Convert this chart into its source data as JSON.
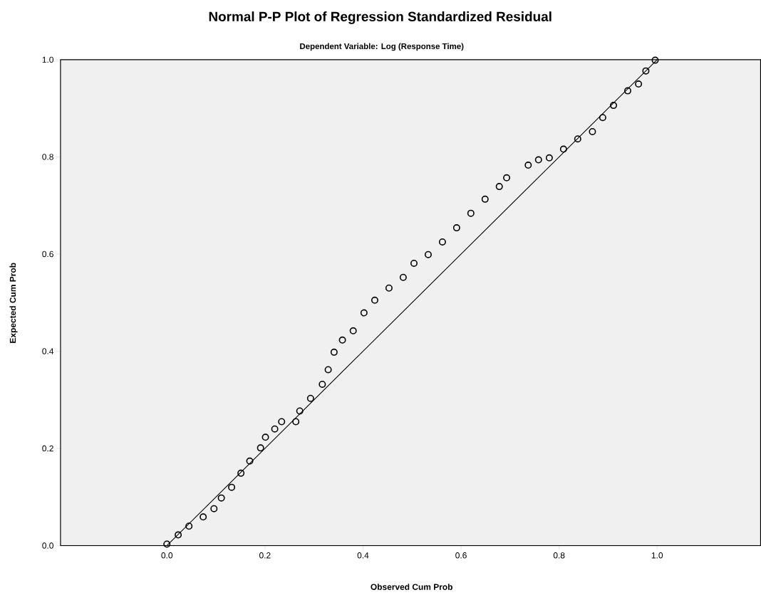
{
  "chart_data": {
    "type": "scatter",
    "title": "Normal P-P Plot of Regression Standardized Residual",
    "subtitle": "Dependent Variable: Log (Response Time)",
    "xlabel": "Observed Cum Prob",
    "ylabel": "Expected Cum Prob",
    "xlim": [
      -0.217,
      1.211
    ],
    "ylim": [
      0,
      1
    ],
    "xticks": [
      {
        "value": 0,
        "label": "0.0"
      },
      {
        "value": 0.2,
        "label": "0.2"
      },
      {
        "value": 0.4,
        "label": "0.4"
      },
      {
        "value": 0.6,
        "label": "0.6"
      },
      {
        "value": 0.8,
        "label": "0.8"
      },
      {
        "value": 1,
        "label": "1.0"
      }
    ],
    "yticks": [
      {
        "value": 0,
        "label": "0.0"
      },
      {
        "value": 0.2,
        "label": "0.2"
      },
      {
        "value": 0.4,
        "label": "0.4"
      },
      {
        "value": 0.6,
        "label": "0.6"
      },
      {
        "value": 0.8,
        "label": "0.8"
      },
      {
        "value": 1,
        "label": "1.0"
      }
    ],
    "grid": false,
    "series": [
      {
        "marker": "circle",
        "color": "#000000",
        "x": [
          0.0,
          0.023,
          0.045,
          0.074,
          0.096,
          0.111,
          0.132,
          0.151,
          0.169,
          0.191,
          0.201,
          0.22,
          0.234,
          0.263,
          0.271,
          0.293,
          0.317,
          0.329,
          0.341,
          0.358,
          0.38,
          0.402,
          0.424,
          0.453,
          0.482,
          0.504,
          0.533,
          0.562,
          0.591,
          0.62,
          0.649,
          0.678,
          0.693,
          0.737,
          0.758,
          0.78,
          0.809,
          0.838,
          0.868,
          0.889,
          0.911,
          0.94,
          0.962,
          0.977,
          0.996
        ],
        "values": [
          0.003,
          0.022,
          0.04,
          0.059,
          0.076,
          0.098,
          0.12,
          0.149,
          0.174,
          0.201,
          0.223,
          0.24,
          0.255,
          0.255,
          0.277,
          0.303,
          0.332,
          0.362,
          0.398,
          0.423,
          0.442,
          0.479,
          0.505,
          0.53,
          0.552,
          0.581,
          0.599,
          0.625,
          0.654,
          0.684,
          0.713,
          0.739,
          0.757,
          0.783,
          0.794,
          0.798,
          0.816,
          0.837,
          0.852,
          0.881,
          0.906,
          0.936,
          0.95,
          0.977,
          0.999
        ]
      },
      {
        "type": "line",
        "marker": "none",
        "line_style": "solid",
        "color": "#000000",
        "x": [
          0,
          1
        ],
        "values": [
          0,
          1
        ]
      }
    ]
  }
}
